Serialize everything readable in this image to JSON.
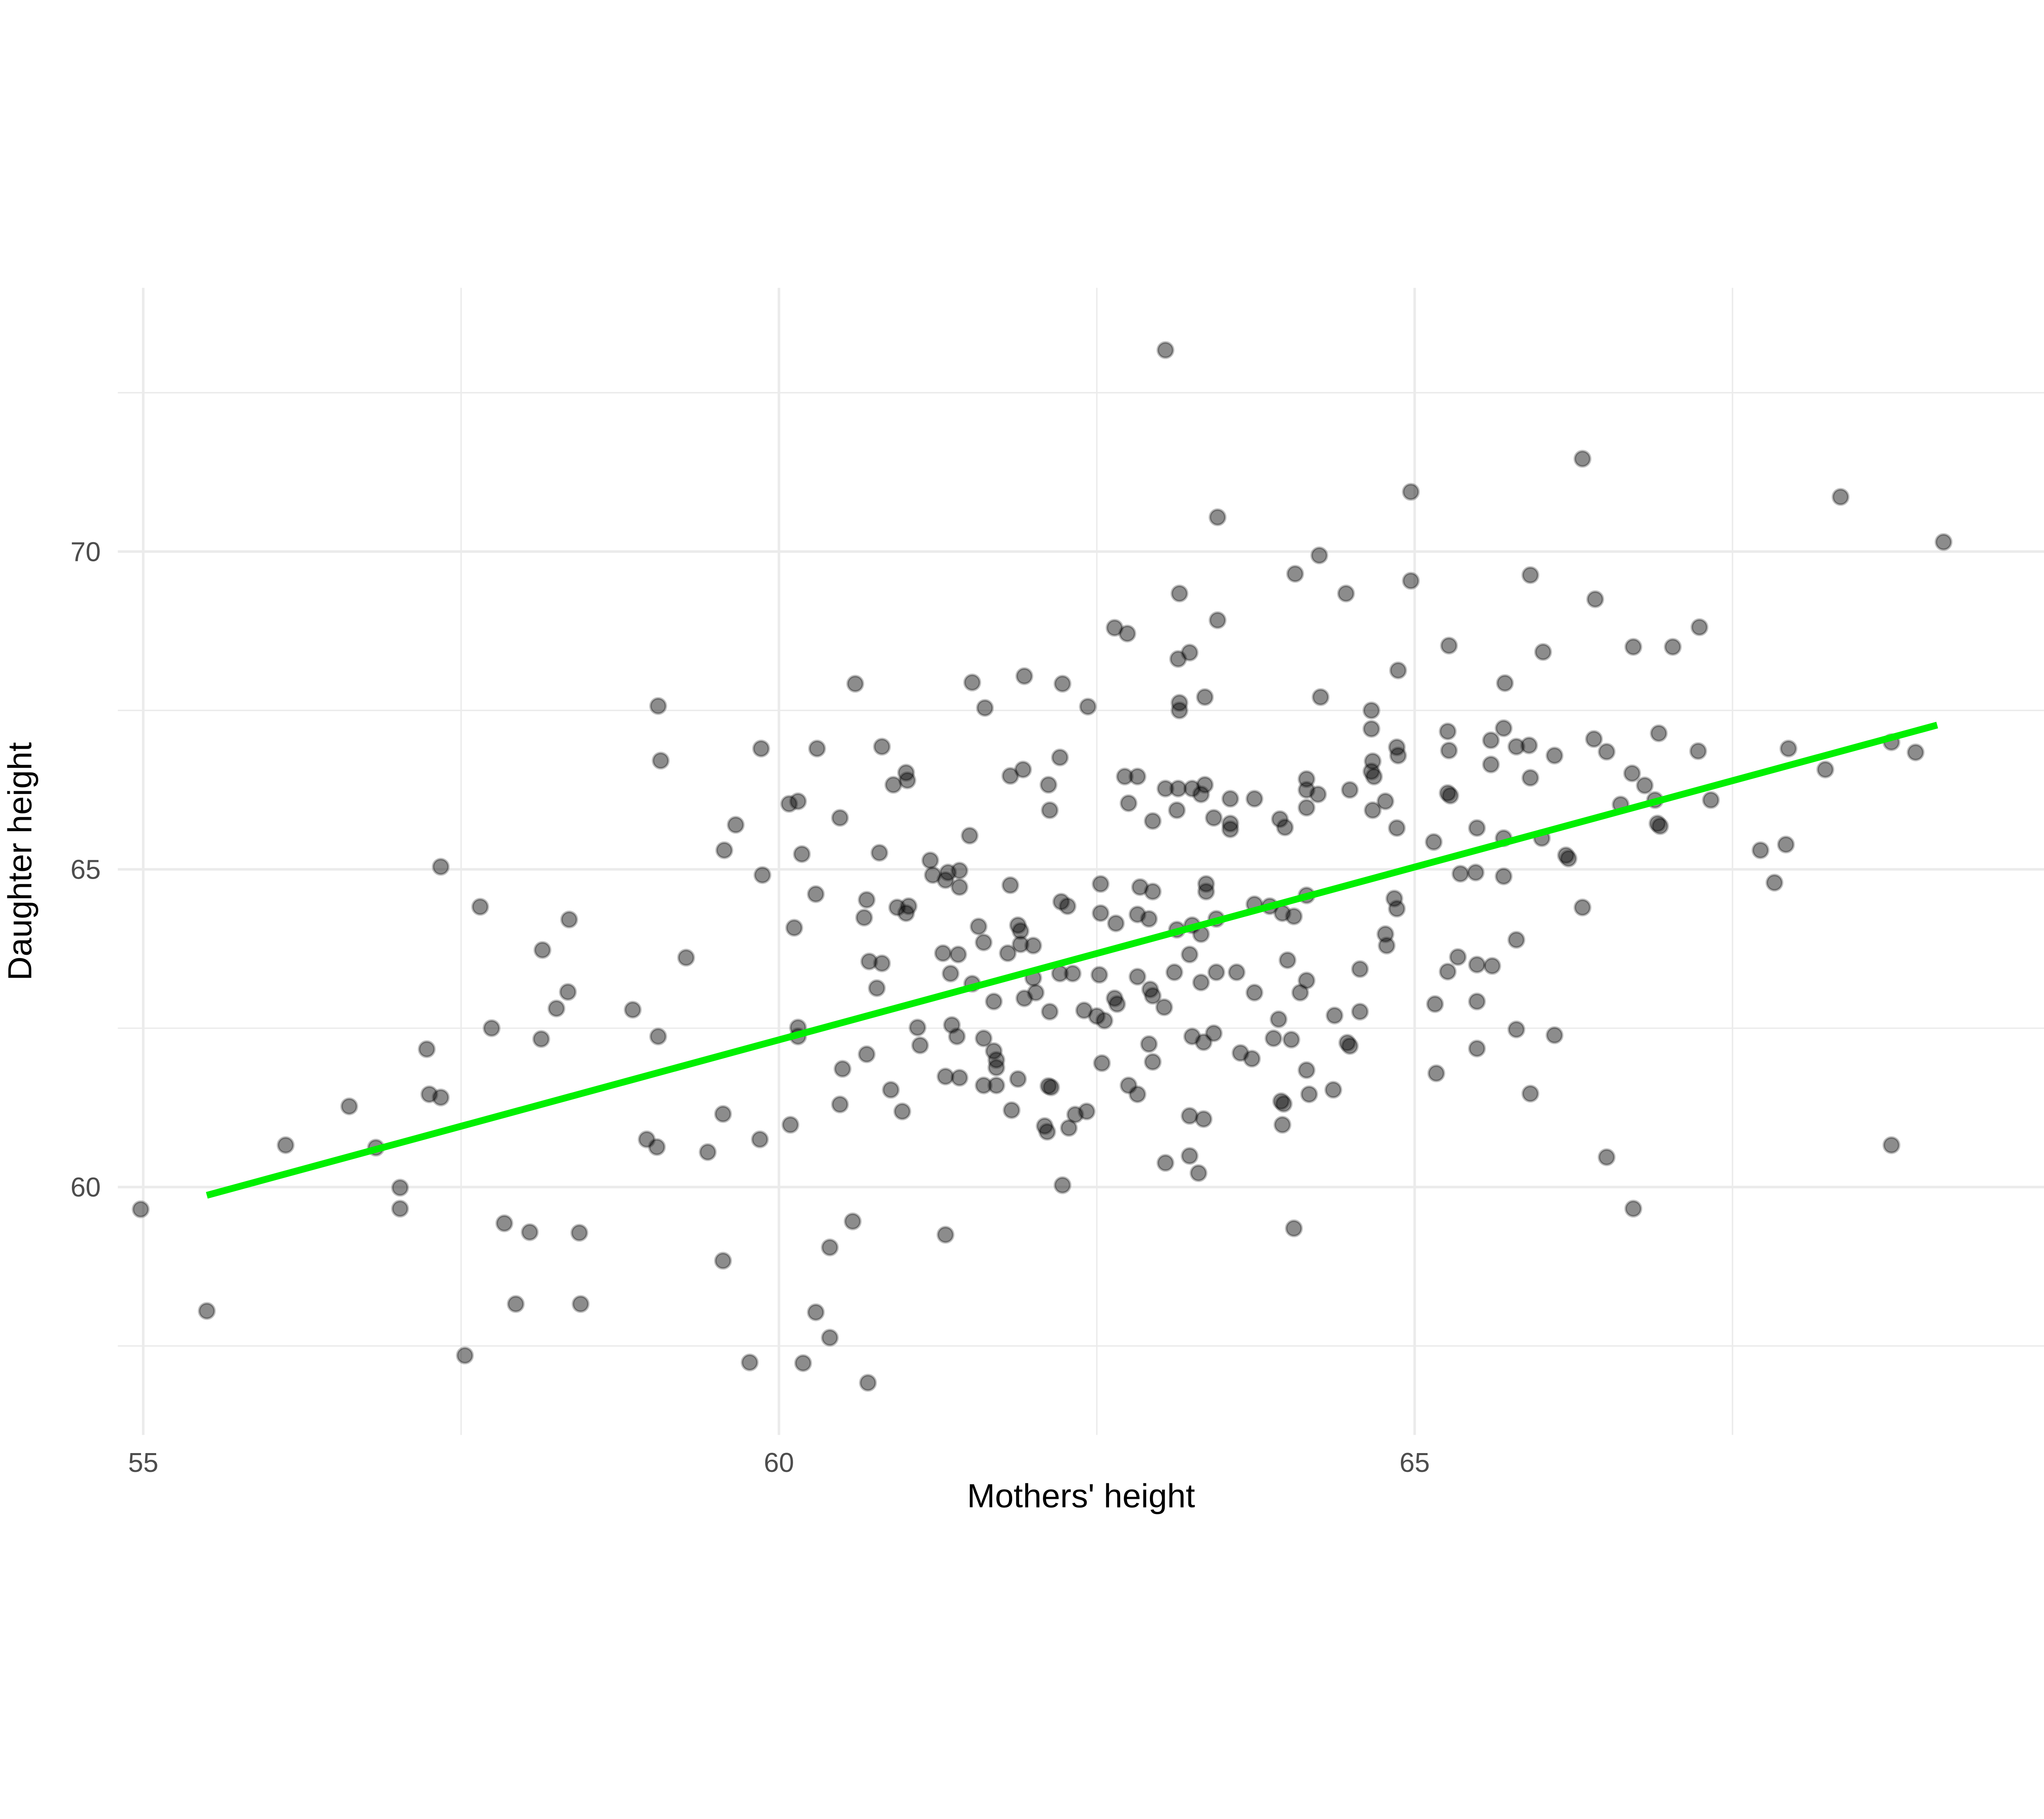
{
  "chart_data": {
    "type": "scatter",
    "title": "",
    "xlabel": "Mothers' height",
    "ylabel": "Daughter height",
    "x_domain": [
      54.8,
      69.95
    ],
    "y_domain": [
      56.1,
      74.15
    ],
    "x_ticks": [
      55,
      60,
      65
    ],
    "x_tick_labels": [
      "55",
      "60",
      "65"
    ],
    "y_ticks": [
      60,
      65,
      70
    ],
    "y_tick_labels": [
      "60",
      "65",
      "70"
    ],
    "x_minor_ticks": [
      57.5,
      62.5,
      67.5
    ],
    "y_minor_ticks": [
      57.5,
      62.5,
      67.5,
      72.5
    ],
    "grid": "on",
    "legend": "none",
    "colors": {
      "background": "#ffffff",
      "grid": "#ebebeb",
      "tick_label": "#4d4d4d",
      "axis_title": "#000000",
      "point_fill": "rgba(0,0,0,0.45)",
      "point_stroke": "rgba(0,0,0,0.25)",
      "regression": "#00f000"
    },
    "regression_line": {
      "x1": 55.5,
      "y1": 59.87,
      "x2": 69.11,
      "y2": 67.27
    },
    "points": [
      [
        59.05,
        67.57
      ],
      [
        59.07,
        66.71
      ],
      [
        59.86,
        66.9
      ],
      [
        63.04,
        73.17
      ],
      [
        64.97,
        70.94
      ],
      [
        63.45,
        70.54
      ],
      [
        64.25,
        69.94
      ],
      [
        64.06,
        69.65
      ],
      [
        63.15,
        69.34
      ],
      [
        64.46,
        69.34
      ],
      [
        64.97,
        69.54
      ],
      [
        63.45,
        68.92
      ],
      [
        62.64,
        68.8
      ],
      [
        62.74,
        68.71
      ],
      [
        63.23,
        68.41
      ],
      [
        63.14,
        68.31
      ],
      [
        65.27,
        68.52
      ],
      [
        64.87,
        68.13
      ],
      [
        60.6,
        67.92
      ],
      [
        61.52,
        67.94
      ],
      [
        61.93,
        68.04
      ],
      [
        62.23,
        67.92
      ],
      [
        61.62,
        67.54
      ],
      [
        62.43,
        67.56
      ],
      [
        63.15,
        67.62
      ],
      [
        63.15,
        67.5
      ],
      [
        63.35,
        67.71
      ],
      [
        64.26,
        67.71
      ],
      [
        64.66,
        67.5
      ],
      [
        64.66,
        67.21
      ],
      [
        65.26,
        67.17
      ],
      [
        64.86,
        66.92
      ],
      [
        60.3,
        66.9
      ],
      [
        60.81,
        66.93
      ],
      [
        61.0,
        66.52
      ],
      [
        61.01,
        66.4
      ],
      [
        60.9,
        66.33
      ],
      [
        61.82,
        66.47
      ],
      [
        61.92,
        66.57
      ],
      [
        62.21,
        66.76
      ],
      [
        62.12,
        66.33
      ],
      [
        62.72,
        66.46
      ],
      [
        62.82,
        66.46
      ],
      [
        63.04,
        66.27
      ],
      [
        63.14,
        66.27
      ],
      [
        63.25,
        66.27
      ],
      [
        63.35,
        66.33
      ],
      [
        64.15,
        66.42
      ],
      [
        64.15,
        66.25
      ],
      [
        64.24,
        66.18
      ],
      [
        64.49,
        66.25
      ],
      [
        64.67,
        66.7
      ],
      [
        64.66,
        66.54
      ],
      [
        64.68,
        66.46
      ],
      [
        64.87,
        66.79
      ],
      [
        65.27,
        66.87
      ],
      [
        65.26,
        66.2
      ],
      [
        65.28,
        66.16
      ],
      [
        66.32,
        71.46
      ],
      [
        68.35,
        70.86
      ],
      [
        69.16,
        70.15
      ],
      [
        65.91,
        69.63
      ],
      [
        66.42,
        69.25
      ],
      [
        67.24,
        68.81
      ],
      [
        66.72,
        68.5
      ],
      [
        67.03,
        68.5
      ],
      [
        66.01,
        68.42
      ],
      [
        65.71,
        67.93
      ],
      [
        65.7,
        67.22
      ],
      [
        65.6,
        67.03
      ],
      [
        65.6,
        66.65
      ],
      [
        65.8,
        66.93
      ],
      [
        65.9,
        66.95
      ],
      [
        66.1,
        66.79
      ],
      [
        65.91,
        66.44
      ],
      [
        66.41,
        67.05
      ],
      [
        66.51,
        66.85
      ],
      [
        66.92,
        67.14
      ],
      [
        67.23,
        66.86
      ],
      [
        66.71,
        66.51
      ],
      [
        66.81,
        66.32
      ],
      [
        67.94,
        66.9
      ],
      [
        68.23,
        66.57
      ],
      [
        68.75,
        67.0
      ],
      [
        68.94,
        66.84
      ],
      [
        60.08,
        66.03
      ],
      [
        59.66,
        65.7
      ],
      [
        59.57,
        65.3
      ],
      [
        57.34,
        65.04
      ],
      [
        59.87,
        64.91
      ],
      [
        57.65,
        64.41
      ],
      [
        58.35,
        64.21
      ],
      [
        58.14,
        63.73
      ],
      [
        59.27,
        63.61
      ],
      [
        58.34,
        63.07
      ],
      [
        58.25,
        62.81
      ],
      [
        58.85,
        62.79
      ],
      [
        57.74,
        62.5
      ],
      [
        58.13,
        62.33
      ],
      [
        59.05,
        62.37
      ],
      [
        57.23,
        62.17
      ],
      [
        56.62,
        61.27
      ],
      [
        57.25,
        61.46
      ],
      [
        57.34,
        61.41
      ],
      [
        56.12,
        60.66
      ],
      [
        56.83,
        60.62
      ],
      [
        57.02,
        59.99
      ],
      [
        57.02,
        59.66
      ],
      [
        57.84,
        59.43
      ],
      [
        58.04,
        59.29
      ],
      [
        58.43,
        59.28
      ],
      [
        54.98,
        59.65
      ],
      [
        60.12,
        64.08
      ],
      [
        59.56,
        61.15
      ],
      [
        58.96,
        60.75
      ],
      [
        59.04,
        60.63
      ],
      [
        59.44,
        60.55
      ],
      [
        59.85,
        60.75
      ],
      [
        60.09,
        60.98
      ],
      [
        60.15,
        66.07
      ],
      [
        60.48,
        65.81
      ],
      [
        62.13,
        65.93
      ],
      [
        62.75,
        66.04
      ],
      [
        63.32,
        66.18
      ],
      [
        63.55,
        66.11
      ],
      [
        63.74,
        66.11
      ],
      [
        63.13,
        65.93
      ],
      [
        63.42,
        65.81
      ],
      [
        62.94,
        65.76
      ],
      [
        63.55,
        65.72
      ],
      [
        63.55,
        65.63
      ],
      [
        63.94,
        65.79
      ],
      [
        63.98,
        65.66
      ],
      [
        64.15,
        65.97
      ],
      [
        64.67,
        65.93
      ],
      [
        64.77,
        66.07
      ],
      [
        64.86,
        65.65
      ],
      [
        61.5,
        65.53
      ],
      [
        60.79,
        65.26
      ],
      [
        65.15,
        65.43
      ],
      [
        65.36,
        64.93
      ],
      [
        61.19,
        65.14
      ],
      [
        61.21,
        64.91
      ],
      [
        61.31,
        64.83
      ],
      [
        61.33,
        64.95
      ],
      [
        61.42,
        64.98
      ],
      [
        61.42,
        64.72
      ],
      [
        60.29,
        64.61
      ],
      [
        60.69,
        64.52
      ],
      [
        60.67,
        64.24
      ],
      [
        60.93,
        64.4
      ],
      [
        61.0,
        64.31
      ],
      [
        61.02,
        64.42
      ],
      [
        61.82,
        64.75
      ],
      [
        62.22,
        64.49
      ],
      [
        62.27,
        64.42
      ],
      [
        62.53,
        64.77
      ],
      [
        62.53,
        64.31
      ],
      [
        62.65,
        64.15
      ],
      [
        62.84,
        64.72
      ],
      [
        62.94,
        64.65
      ],
      [
        62.82,
        64.29
      ],
      [
        62.91,
        64.22
      ],
      [
        63.36,
        64.77
      ],
      [
        63.36,
        64.65
      ],
      [
        63.25,
        64.12
      ],
      [
        63.13,
        64.05
      ],
      [
        63.32,
        63.98
      ],
      [
        63.44,
        64.22
      ],
      [
        63.74,
        64.45
      ],
      [
        63.86,
        64.42
      ],
      [
        63.96,
        64.31
      ],
      [
        64.05,
        64.26
      ],
      [
        64.15,
        64.59
      ],
      [
        64.84,
        64.54
      ],
      [
        64.86,
        64.38
      ],
      [
        64.57,
        63.43
      ],
      [
        65.34,
        63.62
      ],
      [
        65.26,
        63.39
      ],
      [
        61.57,
        64.1
      ],
      [
        61.61,
        63.85
      ],
      [
        61.88,
        64.12
      ],
      [
        61.9,
        64.03
      ],
      [
        61.9,
        63.82
      ],
      [
        62.0,
        63.8
      ],
      [
        61.29,
        63.68
      ],
      [
        61.41,
        63.66
      ],
      [
        60.71,
        63.55
      ],
      [
        60.81,
        63.52
      ],
      [
        61.35,
        63.36
      ],
      [
        61.52,
        63.2
      ],
      [
        60.77,
        63.13
      ],
      [
        61.8,
        63.68
      ],
      [
        61.69,
        62.92
      ],
      [
        61.93,
        62.97
      ],
      [
        62.0,
        63.29
      ],
      [
        62.02,
        63.06
      ],
      [
        62.21,
        63.36
      ],
      [
        62.31,
        63.36
      ],
      [
        62.52,
        63.34
      ],
      [
        62.13,
        62.76
      ],
      [
        62.4,
        62.78
      ],
      [
        62.5,
        62.69
      ],
      [
        62.56,
        62.62
      ],
      [
        62.82,
        63.31
      ],
      [
        62.92,
        63.11
      ],
      [
        62.94,
        63.01
      ],
      [
        63.03,
        62.83
      ],
      [
        62.64,
        62.97
      ],
      [
        62.66,
        62.88
      ],
      [
        63.11,
        63.38
      ],
      [
        63.23,
        63.66
      ],
      [
        63.44,
        63.38
      ],
      [
        63.32,
        63.22
      ],
      [
        63.6,
        63.38
      ],
      [
        63.74,
        63.06
      ],
      [
        64.0,
        63.57
      ],
      [
        64.1,
        63.06
      ],
      [
        64.15,
        63.25
      ],
      [
        64.57,
        62.76
      ],
      [
        64.37,
        62.7
      ],
      [
        65.16,
        62.88
      ],
      [
        64.77,
        63.98
      ],
      [
        64.78,
        63.8
      ],
      [
        60.15,
        62.51
      ],
      [
        60.15,
        62.37
      ],
      [
        61.09,
        62.51
      ],
      [
        61.11,
        62.23
      ],
      [
        60.69,
        62.09
      ],
      [
        60.5,
        61.86
      ],
      [
        61.36,
        62.55
      ],
      [
        61.4,
        62.37
      ],
      [
        61.61,
        62.34
      ],
      [
        61.69,
        62.14
      ],
      [
        61.71,
        62.0
      ],
      [
        61.71,
        61.88
      ],
      [
        61.31,
        61.74
      ],
      [
        61.42,
        61.72
      ],
      [
        61.61,
        61.6
      ],
      [
        61.71,
        61.6
      ],
      [
        61.88,
        61.7
      ],
      [
        62.12,
        61.59
      ],
      [
        62.14,
        61.57
      ],
      [
        61.83,
        61.21
      ],
      [
        60.88,
        61.53
      ],
      [
        60.97,
        61.19
      ],
      [
        60.48,
        61.3
      ],
      [
        62.09,
        60.96
      ],
      [
        62.11,
        60.87
      ],
      [
        62.28,
        60.93
      ],
      [
        62.33,
        61.14
      ],
      [
        62.42,
        61.19
      ],
      [
        62.54,
        61.95
      ],
      [
        62.75,
        61.6
      ],
      [
        62.82,
        61.46
      ],
      [
        62.94,
        61.97
      ],
      [
        62.91,
        62.25
      ],
      [
        63.25,
        62.37
      ],
      [
        63.34,
        62.28
      ],
      [
        63.42,
        62.42
      ],
      [
        63.23,
        61.12
      ],
      [
        63.34,
        61.07
      ],
      [
        63.04,
        60.38
      ],
      [
        63.3,
        60.22
      ],
      [
        63.63,
        62.11
      ],
      [
        63.72,
        62.02
      ],
      [
        63.93,
        62.64
      ],
      [
        63.89,
        62.34
      ],
      [
        64.03,
        62.32
      ],
      [
        64.15,
        61.84
      ],
      [
        64.17,
        61.46
      ],
      [
        63.95,
        61.35
      ],
      [
        63.97,
        61.31
      ],
      [
        63.96,
        60.98
      ],
      [
        64.36,
        61.53
      ],
      [
        64.47,
        62.27
      ],
      [
        64.49,
        62.22
      ],
      [
        65.17,
        61.79
      ],
      [
        62.23,
        60.03
      ],
      [
        63.23,
        60.49
      ],
      [
        60.58,
        59.46
      ],
      [
        64.05,
        59.35
      ],
      [
        60.18,
        65.24
      ],
      [
        66.62,
        66.02
      ],
      [
        66.89,
        66.09
      ],
      [
        67.33,
        66.09
      ],
      [
        66.91,
        65.72
      ],
      [
        66.93,
        65.68
      ],
      [
        65.49,
        65.65
      ],
      [
        65.7,
        65.49
      ],
      [
        66.0,
        65.49
      ],
      [
        66.19,
        65.22
      ],
      [
        66.21,
        65.17
      ],
      [
        67.72,
        65.3
      ],
      [
        67.92,
        65.39
      ],
      [
        65.7,
        64.89
      ],
      [
        67.83,
        64.79
      ],
      [
        66.32,
        64.4
      ],
      [
        65.8,
        63.89
      ],
      [
        65.49,
        63.5
      ],
      [
        65.61,
        63.48
      ],
      [
        65.49,
        62.92
      ],
      [
        65.8,
        62.48
      ],
      [
        66.1,
        62.39
      ],
      [
        65.49,
        62.18
      ],
      [
        65.91,
        61.47
      ],
      [
        68.75,
        60.66
      ],
      [
        66.51,
        60.47
      ],
      [
        66.72,
        59.66
      ],
      [
        65.48,
        64.95
      ],
      [
        59.56,
        58.84
      ],
      [
        55.5,
        58.05
      ],
      [
        57.93,
        58.16
      ],
      [
        58.44,
        58.16
      ],
      [
        57.53,
        57.35
      ],
      [
        59.77,
        57.24
      ],
      [
        60.19,
        57.23
      ],
      [
        61.31,
        59.25
      ],
      [
        60.4,
        59.05
      ],
      [
        60.29,
        58.03
      ],
      [
        60.4,
        57.63
      ],
      [
        60.7,
        56.92
      ]
    ]
  }
}
